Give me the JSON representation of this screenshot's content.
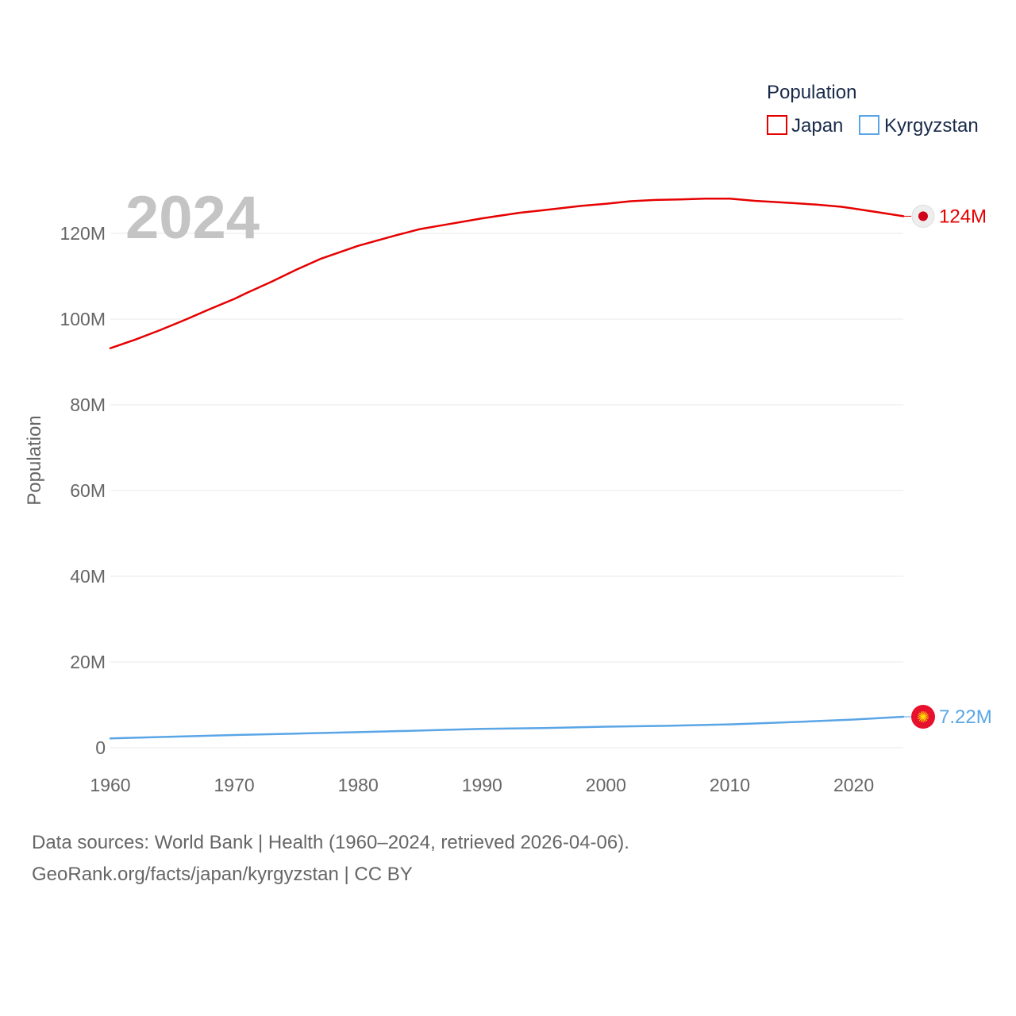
{
  "chart_data": {
    "type": "line",
    "legend": {
      "title": "Population",
      "placement": "top-right"
    },
    "ylabel": "Population",
    "xlabel": "",
    "ylim": [
      0,
      130000000
    ],
    "xlim": [
      1960,
      2024
    ],
    "yticks": [
      {
        "value": 0,
        "label": "0"
      },
      {
        "value": 20000000,
        "label": "20M"
      },
      {
        "value": 40000000,
        "label": "40M"
      },
      {
        "value": 60000000,
        "label": "60M"
      },
      {
        "value": 80000000,
        "label": "80M"
      },
      {
        "value": 100000000,
        "label": "100M"
      },
      {
        "value": 120000000,
        "label": "120M"
      }
    ],
    "xticks": [
      {
        "value": 1960,
        "label": "1960"
      },
      {
        "value": 1970,
        "label": "1970"
      },
      {
        "value": 1980,
        "label": "1980"
      },
      {
        "value": 1990,
        "label": "1990"
      },
      {
        "value": 2000,
        "label": "2000"
      },
      {
        "value": 2010,
        "label": "2010"
      },
      {
        "value": 2020,
        "label": "2020"
      }
    ],
    "current_year": "2024",
    "series": [
      {
        "name": "Japan",
        "color": "#e60000",
        "end_label": "124M",
        "flag": "japan-flag-icon",
        "x": [
          1960,
          1962,
          1964,
          1966,
          1968,
          1970,
          1971,
          1973,
          1975,
          1977,
          1980,
          1983,
          1985,
          1987,
          1990,
          1993,
          1995,
          1998,
          2000,
          2002,
          2004,
          2006,
          2008,
          2010,
          2012,
          2015,
          2017,
          2019,
          2020,
          2022,
          2024
        ],
        "values": [
          93200000,
          95200000,
          97400000,
          99800000,
          102300000,
          104700000,
          106100000,
          108700000,
          111500000,
          114100000,
          117100000,
          119500000,
          121000000,
          122000000,
          123500000,
          124800000,
          125400000,
          126400000,
          126900000,
          127500000,
          127800000,
          127900000,
          128100000,
          128100000,
          127600000,
          127100000,
          126700000,
          126200000,
          125800000,
          124900000,
          124000000
        ]
      },
      {
        "name": "Kyrgyzstan",
        "color": "#5aa5e6",
        "end_label": "7.22M",
        "flag": "kyrgyzstan-flag-icon",
        "x": [
          1960,
          1965,
          1970,
          1975,
          1980,
          1985,
          1990,
          1995,
          2000,
          2005,
          2010,
          2015,
          2020,
          2024
        ],
        "values": [
          2170000,
          2570000,
          2960000,
          3300000,
          3630000,
          4000000,
          4390000,
          4590000,
          4900000,
          5120000,
          5450000,
          5960000,
          6580000,
          7220000
        ]
      }
    ]
  },
  "source": {
    "line1": "Data sources: World Bank | Health (1960–2024, retrieved 2026-04-06).",
    "line2": "GeoRank.org/facts/japan/kyrgyzstan | CC BY"
  }
}
